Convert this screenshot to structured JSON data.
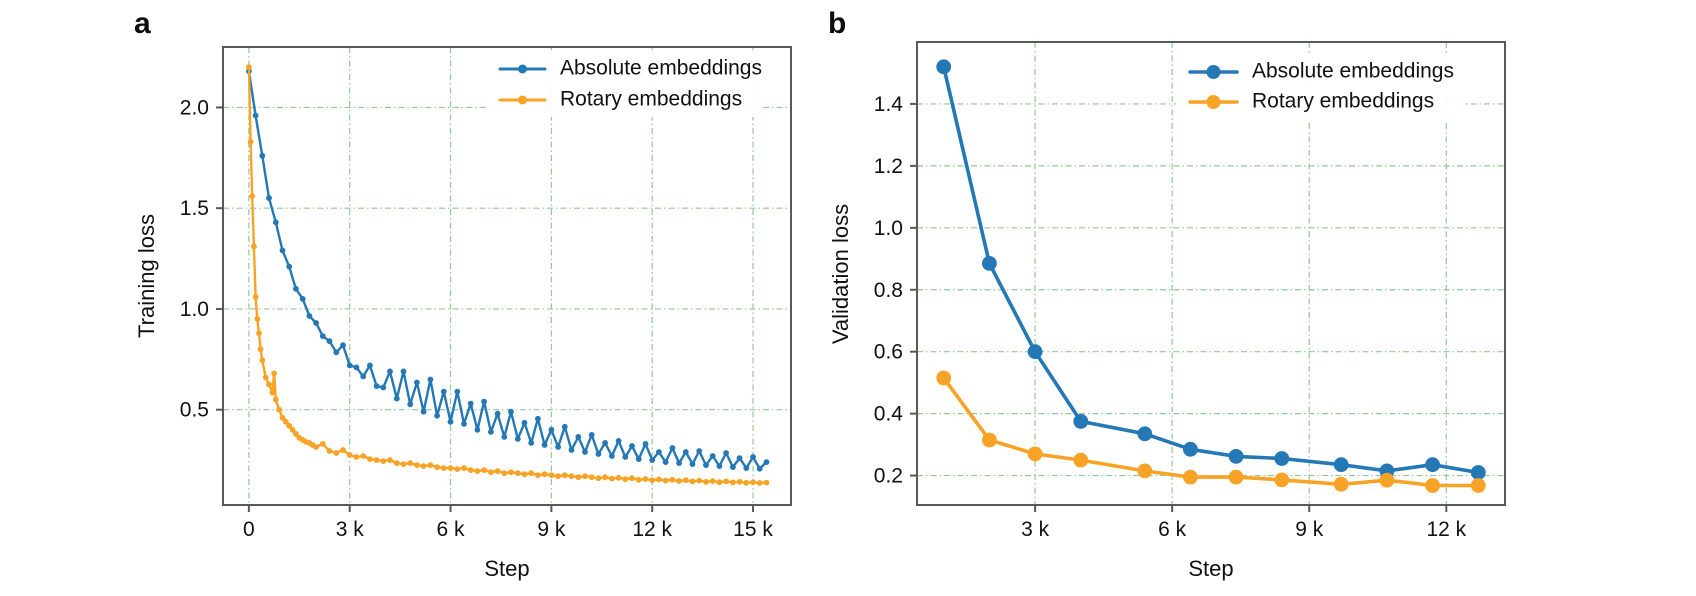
{
  "figure": {
    "background": "#ffffff"
  },
  "style": {
    "series_blue": "#2378b5",
    "series_orange": "#f9a326",
    "grid_color": "#3c9e3c",
    "spine_color": "#59595b",
    "text_color": "#111111"
  },
  "legend": {
    "items": [
      {
        "label": "Absolute embeddings",
        "color": "#2378b5"
      },
      {
        "label": "Rotary embeddings",
        "color": "#f9a326"
      }
    ]
  },
  "chart_data": [
    {
      "panel": "a",
      "type": "line",
      "xlabel": "Step",
      "ylabel": "Training loss",
      "xlim": [
        -770,
        16130
      ],
      "ylim": [
        0.027,
        2.3
      ],
      "grid": true,
      "legend_position": "upper right",
      "xticks": {
        "values": [
          0,
          3000,
          6000,
          9000,
          12000,
          15000
        ],
        "labels": [
          "0",
          "3 k",
          "6 k",
          "9 k",
          "12 k",
          "15 k"
        ]
      },
      "yticks": {
        "values": [
          0.5,
          1.0,
          1.5,
          2.0
        ],
        "labels": [
          "0.5",
          "1.0",
          "1.5",
          "2.0"
        ]
      },
      "series": [
        {
          "name": "Absolute embeddings",
          "color": "#2378b5",
          "points": [
            [
              0,
              2.18
            ],
            [
              200,
              1.96
            ],
            [
              400,
              1.76
            ],
            [
              600,
              1.55
            ],
            [
              800,
              1.43
            ],
            [
              1000,
              1.29
            ],
            [
              1200,
              1.21
            ],
            [
              1400,
              1.1
            ],
            [
              1600,
              1.05
            ],
            [
              1800,
              0.965
            ],
            [
              2000,
              0.93
            ],
            [
              2200,
              0.865
            ],
            [
              2400,
              0.84
            ],
            [
              2600,
              0.785
            ],
            [
              2800,
              0.82
            ],
            [
              3000,
              0.72
            ],
            [
              3200,
              0.71
            ],
            [
              3400,
              0.665
            ],
            [
              3600,
              0.72
            ],
            [
              3800,
              0.617
            ],
            [
              4000,
              0.61
            ],
            [
              4200,
              0.69
            ],
            [
              4400,
              0.555
            ],
            [
              4600,
              0.69
            ],
            [
              4800,
              0.527
            ],
            [
              5000,
              0.635
            ],
            [
              5200,
              0.49
            ],
            [
              5400,
              0.65
            ],
            [
              5600,
              0.47
            ],
            [
              5800,
              0.59
            ],
            [
              6000,
              0.44
            ],
            [
              6200,
              0.59
            ],
            [
              6400,
              0.43
            ],
            [
              6600,
              0.53
            ],
            [
              6800,
              0.4
            ],
            [
              7000,
              0.54
            ],
            [
              7200,
              0.39
            ],
            [
              7400,
              0.48
            ],
            [
              7600,
              0.365
            ],
            [
              7800,
              0.49
            ],
            [
              8000,
              0.355
            ],
            [
              8200,
              0.435
            ],
            [
              8400,
              0.335
            ],
            [
              8600,
              0.455
            ],
            [
              8800,
              0.325
            ],
            [
              9000,
              0.4
            ],
            [
              9200,
              0.315
            ],
            [
              9400,
              0.415
            ],
            [
              9600,
              0.3
            ],
            [
              9800,
              0.365
            ],
            [
              10000,
              0.29
            ],
            [
              10200,
              0.375
            ],
            [
              10400,
              0.28
            ],
            [
              10600,
              0.335
            ],
            [
              10800,
              0.27
            ],
            [
              11000,
              0.345
            ],
            [
              11200,
              0.265
            ],
            [
              11400,
              0.32
            ],
            [
              11600,
              0.255
            ],
            [
              11800,
              0.33
            ],
            [
              12000,
              0.25
            ],
            [
              12200,
              0.29
            ],
            [
              12400,
              0.24
            ],
            [
              12600,
              0.31
            ],
            [
              12800,
              0.235
            ],
            [
              13000,
              0.29
            ],
            [
              13200,
              0.23
            ],
            [
              13400,
              0.295
            ],
            [
              13600,
              0.225
            ],
            [
              13800,
              0.27
            ],
            [
              14000,
              0.22
            ],
            [
              14200,
              0.285
            ],
            [
              14400,
              0.215
            ],
            [
              14600,
              0.26
            ],
            [
              14800,
              0.21
            ],
            [
              15000,
              0.265
            ],
            [
              15200,
              0.207
            ],
            [
              15400,
              0.24
            ]
          ]
        },
        {
          "name": "Rotary embeddings",
          "color": "#f9a326",
          "points": [
            [
              0,
              2.2
            ],
            [
              50,
              1.83
            ],
            [
              100,
              1.56
            ],
            [
              150,
              1.31
            ],
            [
              200,
              1.06
            ],
            [
              250,
              0.95
            ],
            [
              300,
              0.88
            ],
            [
              350,
              0.8
            ],
            [
              400,
              0.745
            ],
            [
              500,
              0.66
            ],
            [
              600,
              0.625
            ],
            [
              700,
              0.585
            ],
            [
              750,
              0.68
            ],
            [
              800,
              0.55
            ],
            [
              900,
              0.5
            ],
            [
              1000,
              0.46
            ],
            [
              1100,
              0.44
            ],
            [
              1200,
              0.42
            ],
            [
              1300,
              0.4
            ],
            [
              1400,
              0.38
            ],
            [
              1500,
              0.36
            ],
            [
              1600,
              0.35
            ],
            [
              1700,
              0.34
            ],
            [
              1800,
              0.335
            ],
            [
              1900,
              0.325
            ],
            [
              2000,
              0.315
            ],
            [
              2200,
              0.33
            ],
            [
              2400,
              0.295
            ],
            [
              2600,
              0.285
            ],
            [
              2800,
              0.3
            ],
            [
              3000,
              0.275
            ],
            [
              3200,
              0.265
            ],
            [
              3400,
              0.27
            ],
            [
              3600,
              0.255
            ],
            [
              3800,
              0.25
            ],
            [
              4000,
              0.245
            ],
            [
              4200,
              0.25
            ],
            [
              4400,
              0.235
            ],
            [
              4600,
              0.23
            ],
            [
              4800,
              0.235
            ],
            [
              5000,
              0.225
            ],
            [
              5200,
              0.22
            ],
            [
              5400,
              0.225
            ],
            [
              5600,
              0.215
            ],
            [
              5800,
              0.21
            ],
            [
              6000,
              0.21
            ],
            [
              6200,
              0.205
            ],
            [
              6400,
              0.21
            ],
            [
              6600,
              0.2
            ],
            [
              6800,
              0.195
            ],
            [
              7000,
              0.2
            ],
            [
              7200,
              0.19
            ],
            [
              7400,
              0.195
            ],
            [
              7600,
              0.185
            ],
            [
              7800,
              0.19
            ],
            [
              8000,
              0.185
            ],
            [
              8200,
              0.18
            ],
            [
              8400,
              0.185
            ],
            [
              8600,
              0.175
            ],
            [
              8800,
              0.18
            ],
            [
              9000,
              0.175
            ],
            [
              9200,
              0.17
            ],
            [
              9400,
              0.175
            ],
            [
              9600,
              0.17
            ],
            [
              9800,
              0.165
            ],
            [
              10000,
              0.17
            ],
            [
              10200,
              0.165
            ],
            [
              10400,
              0.16
            ],
            [
              10600,
              0.165
            ],
            [
              10800,
              0.158
            ],
            [
              11000,
              0.162
            ],
            [
              11200,
              0.155
            ],
            [
              11400,
              0.16
            ],
            [
              11600,
              0.152
            ],
            [
              11800,
              0.156
            ],
            [
              12000,
              0.15
            ],
            [
              12200,
              0.154
            ],
            [
              12400,
              0.148
            ],
            [
              12600,
              0.152
            ],
            [
              12800,
              0.146
            ],
            [
              13000,
              0.15
            ],
            [
              13200,
              0.144
            ],
            [
              13400,
              0.148
            ],
            [
              13600,
              0.142
            ],
            [
              13800,
              0.146
            ],
            [
              14000,
              0.14
            ],
            [
              14200,
              0.144
            ],
            [
              14400,
              0.139
            ],
            [
              14600,
              0.142
            ],
            [
              14800,
              0.137
            ],
            [
              15000,
              0.14
            ],
            [
              15200,
              0.136
            ],
            [
              15400,
              0.138
            ]
          ]
        }
      ]
    },
    {
      "panel": "b",
      "type": "line",
      "xlabel": "Step",
      "ylabel": "Validation loss",
      "xlim": [
        415,
        13285
      ],
      "ylim": [
        0.105,
        1.6
      ],
      "grid": true,
      "legend_position": "upper right",
      "xticks": {
        "values": [
          3000,
          6000,
          9000,
          12000
        ],
        "labels": [
          "3 k",
          "6 k",
          "9 k",
          "12 k"
        ]
      },
      "yticks": {
        "values": [
          0.2,
          0.4,
          0.6,
          0.8,
          1.0,
          1.2,
          1.4
        ],
        "labels": [
          "0.2",
          "0.4",
          "0.6",
          "0.8",
          "1.0",
          "1.2",
          "1.4"
        ]
      },
      "series": [
        {
          "name": "Absolute embeddings",
          "color": "#2378b5",
          "points": [
            [
              1000,
              1.52
            ],
            [
              2000,
              0.885
            ],
            [
              3000,
              0.6
            ],
            [
              4000,
              0.375
            ],
            [
              5400,
              0.335
            ],
            [
              6400,
              0.285
            ],
            [
              7400,
              0.262
            ],
            [
              8400,
              0.255
            ],
            [
              9700,
              0.235
            ],
            [
              10700,
              0.215
            ],
            [
              11700,
              0.235
            ],
            [
              12700,
              0.21
            ]
          ]
        },
        {
          "name": "Rotary embeddings",
          "color": "#f9a326",
          "points": [
            [
              1000,
              0.515
            ],
            [
              2000,
              0.315
            ],
            [
              3000,
              0.27
            ],
            [
              4000,
              0.25
            ],
            [
              5400,
              0.215
            ],
            [
              6400,
              0.195
            ],
            [
              7400,
              0.195
            ],
            [
              8400,
              0.186
            ],
            [
              9700,
              0.172
            ],
            [
              10700,
              0.185
            ],
            [
              11700,
              0.168
            ],
            [
              12700,
              0.168
            ]
          ]
        }
      ]
    }
  ]
}
